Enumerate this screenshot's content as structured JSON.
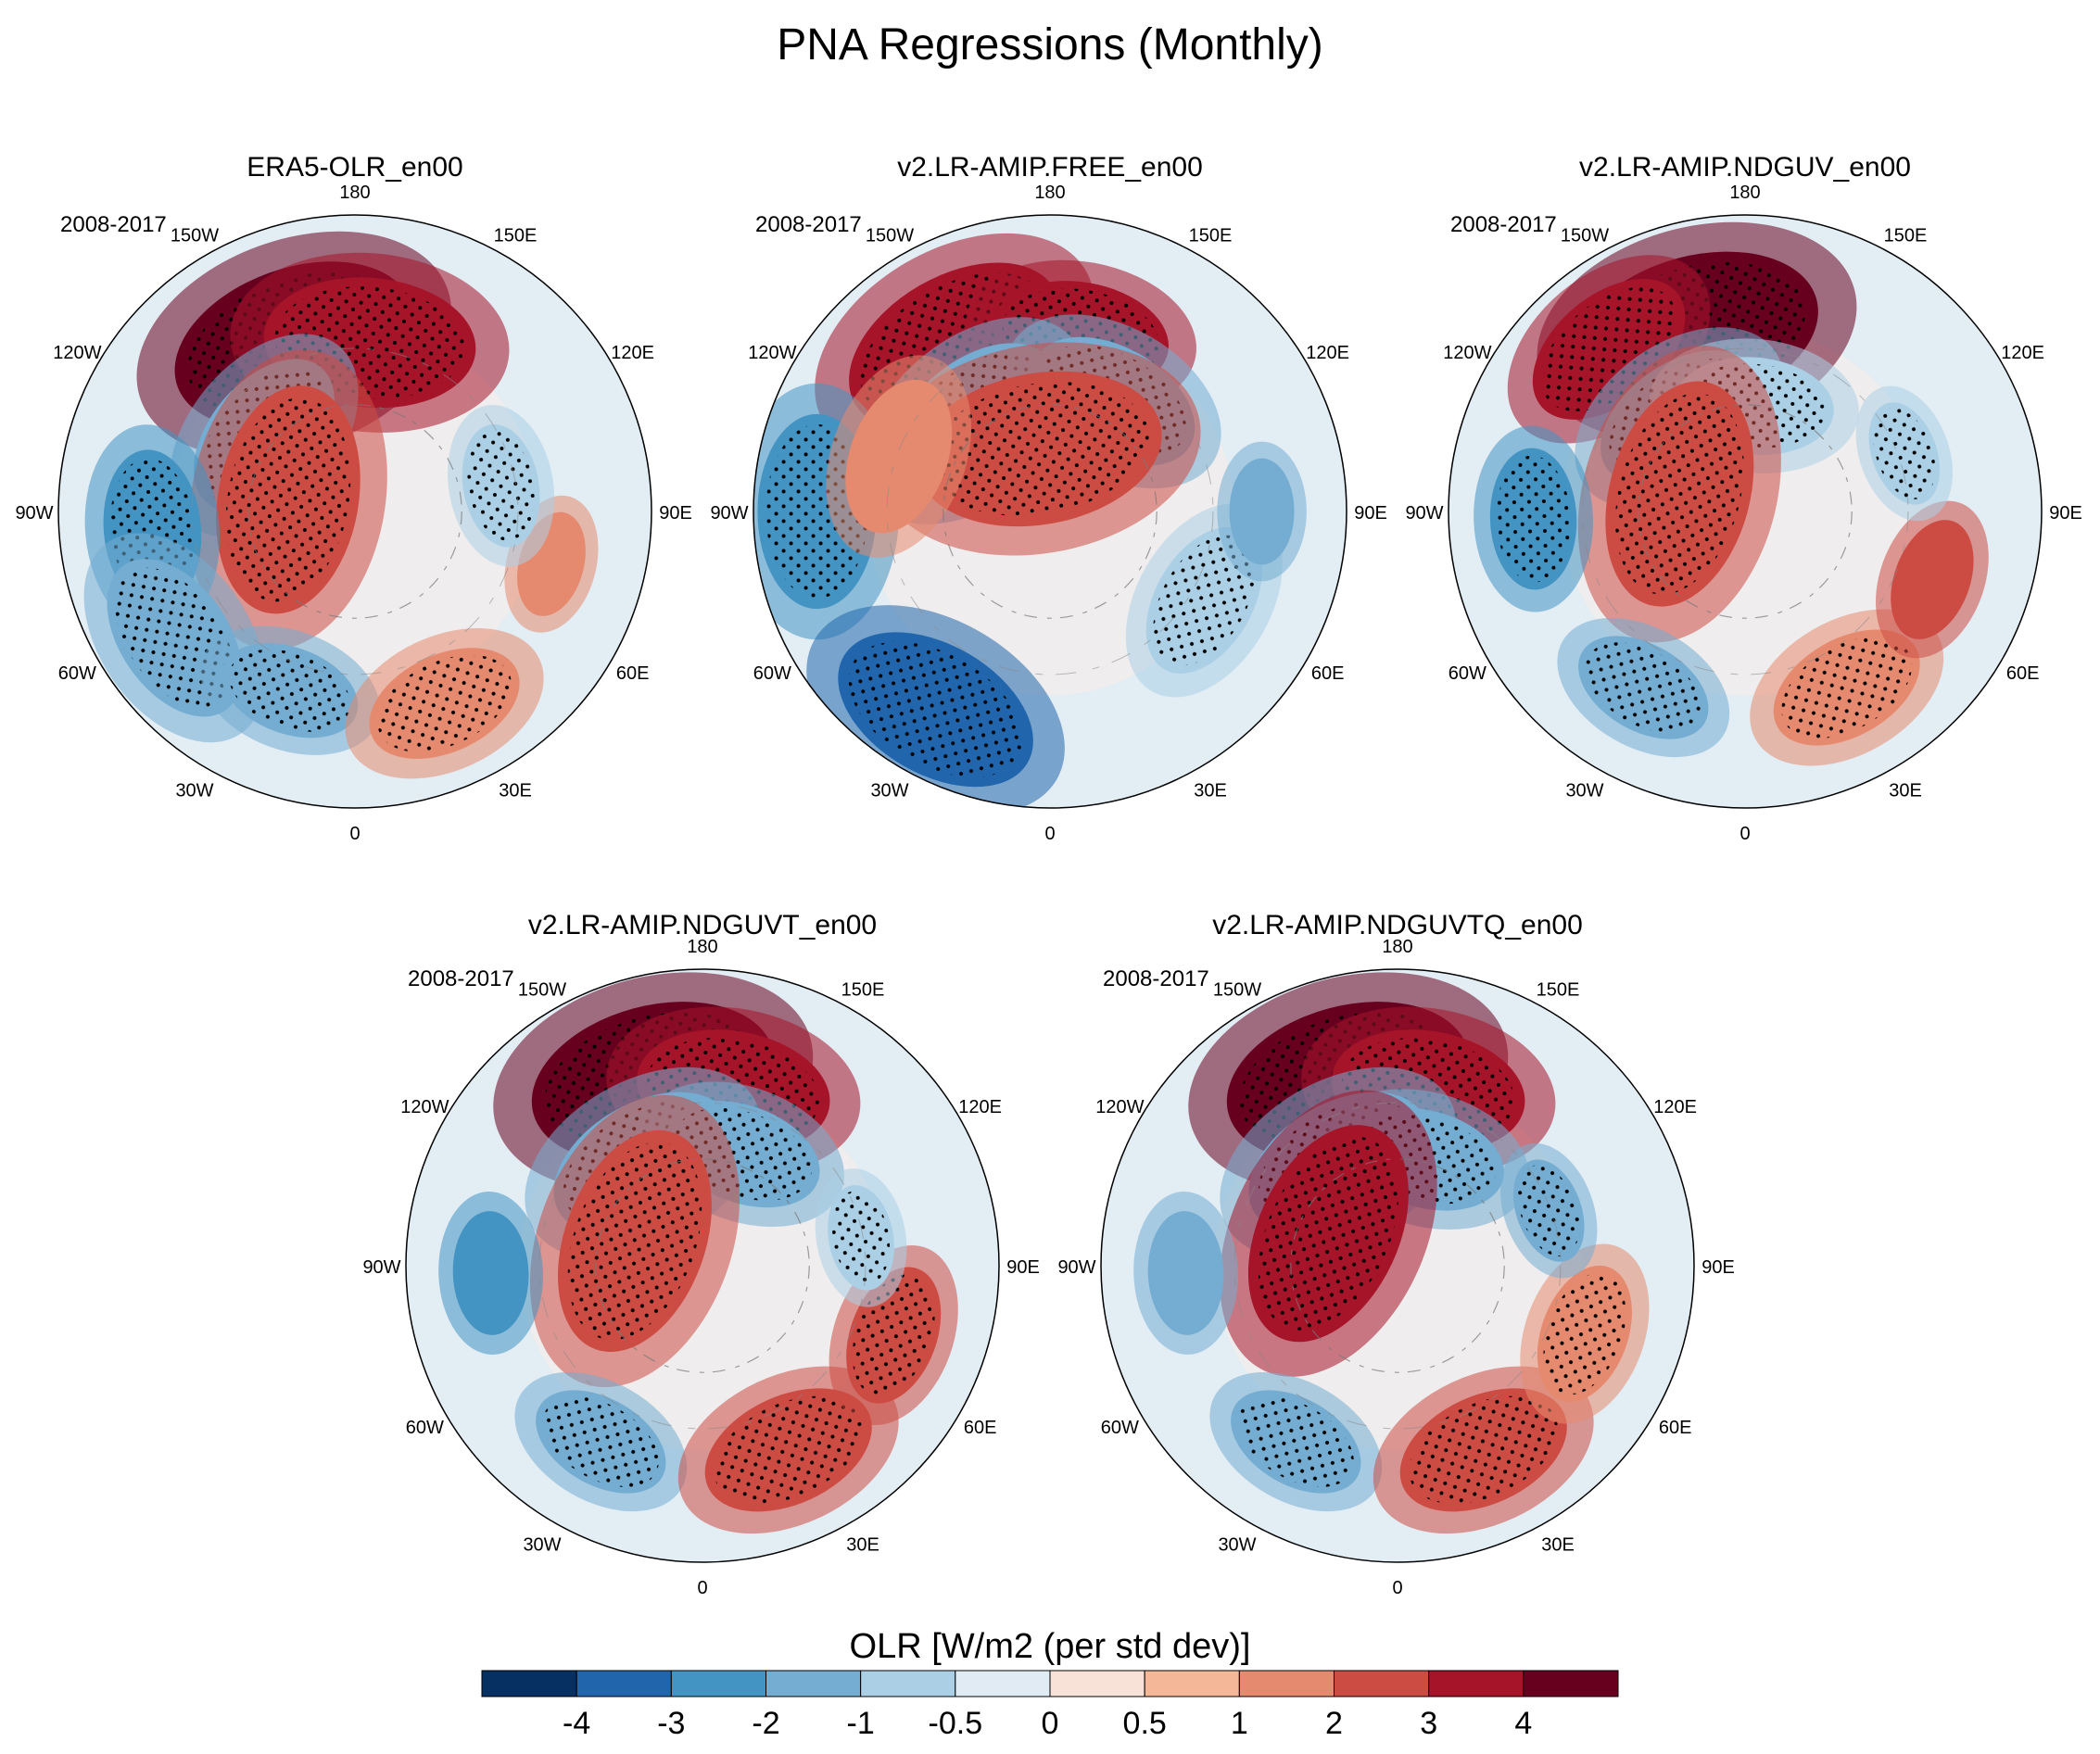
{
  "chart_data": {
    "type": "heatmap",
    "title": "PNA Regressions (Monthly)",
    "projection": "north-polar-stereographic",
    "period": "2008-2017",
    "longitude_labels": [
      "180",
      "150E",
      "120E",
      "90E",
      "60E",
      "30E",
      "0",
      "30W",
      "60W",
      "90W",
      "120W",
      "150W"
    ],
    "panels": [
      {
        "title": "ERA5-OLR_en00",
        "period_label": "2008-2017",
        "anomalies": [
          {
            "lon": -160,
            "lat": 48,
            "r": 14,
            "value": 4,
            "stipple": true
          },
          {
            "lon": 175,
            "lat": 50,
            "r": 12,
            "value": 3,
            "stipple": true
          },
          {
            "lon": -130,
            "lat": 62,
            "r": 10,
            "value": -2,
            "stipple": true
          },
          {
            "lon": -100,
            "lat": 74,
            "r": 13,
            "value": 2,
            "stipple": true
          },
          {
            "lon": -85,
            "lat": 42,
            "r": 9,
            "value": -3,
            "stipple": true
          },
          {
            "lon": -55,
            "lat": 38,
            "r": 10,
            "value": -2,
            "stipple": true
          },
          {
            "lon": -20,
            "lat": 45,
            "r": 8,
            "value": -2,
            "stipple": true
          },
          {
            "lon": 25,
            "lat": 40,
            "r": 9,
            "value": 1,
            "stipple": true
          },
          {
            "lon": 75,
            "lat": 42,
            "r": 6,
            "value": 1,
            "stipple": false
          },
          {
            "lon": 100,
            "lat": 55,
            "r": 7,
            "value": -1,
            "stipple": true
          }
        ]
      },
      {
        "title": "v2.LR-AMIP.FREE_en00",
        "period_label": "2008-2017",
        "anomalies": [
          {
            "lon": -150,
            "lat": 45,
            "r": 13,
            "value": 3,
            "stipple": true
          },
          {
            "lon": 170,
            "lat": 48,
            "r": 10,
            "value": 3,
            "stipple": true
          },
          {
            "lon": -140,
            "lat": 62,
            "r": 11,
            "value": -2,
            "stipple": true
          },
          {
            "lon": 150,
            "lat": 60,
            "r": 10,
            "value": -2,
            "stipple": true
          },
          {
            "lon": -170,
            "lat": 75,
            "r": 14,
            "value": 2,
            "stipple": true
          },
          {
            "lon": -90,
            "lat": 35,
            "r": 11,
            "value": -3,
            "stipple": true
          },
          {
            "lon": -30,
            "lat": 36,
            "r": 12,
            "value": -4,
            "stipple": true
          },
          {
            "lon": 60,
            "lat": 48,
            "r": 9,
            "value": -1,
            "stipple": true
          },
          {
            "lon": 90,
            "lat": 40,
            "r": 6,
            "value": -2,
            "stipple": false
          },
          {
            "lon": -110,
            "lat": 52,
            "r": 9,
            "value": 1,
            "stipple": false
          }
        ]
      },
      {
        "title": "v2.LR-AMIP.NDGUV_en00",
        "period_label": "2008-2017",
        "anomalies": [
          {
            "lon": -165,
            "lat": 46,
            "r": 14,
            "value": 4,
            "stipple": true
          },
          {
            "lon": -140,
            "lat": 40,
            "r": 10,
            "value": 3,
            "stipple": true
          },
          {
            "lon": -145,
            "lat": 63,
            "r": 10,
            "value": -2,
            "stipple": true
          },
          {
            "lon": 175,
            "lat": 65,
            "r": 9,
            "value": -1,
            "stipple": true
          },
          {
            "lon": -105,
            "lat": 74,
            "r": 13,
            "value": 2,
            "stipple": true
          },
          {
            "lon": -88,
            "lat": 40,
            "r": 8,
            "value": -3,
            "stipple": true
          },
          {
            "lon": -30,
            "lat": 42,
            "r": 8,
            "value": -2,
            "stipple": true
          },
          {
            "lon": 30,
            "lat": 42,
            "r": 9,
            "value": 1,
            "stipple": true
          },
          {
            "lon": 70,
            "lat": 43,
            "r": 7,
            "value": 2,
            "stipple": false
          },
          {
            "lon": 110,
            "lat": 50,
            "r": 6,
            "value": -1,
            "stipple": true
          }
        ]
      },
      {
        "title": "v2.LR-AMIP.NDGUVT_en00",
        "period_label": "2008-2017",
        "anomalies": [
          {
            "lon": -165,
            "lat": 45,
            "r": 14,
            "value": 4,
            "stipple": true
          },
          {
            "lon": 170,
            "lat": 48,
            "r": 11,
            "value": 3,
            "stipple": true
          },
          {
            "lon": -150,
            "lat": 62,
            "r": 11,
            "value": -2,
            "stipple": true
          },
          {
            "lon": 160,
            "lat": 62,
            "r": 9,
            "value": -2,
            "stipple": true
          },
          {
            "lon": -110,
            "lat": 73,
            "r": 13,
            "value": 2,
            "stipple": true
          },
          {
            "lon": -88,
            "lat": 40,
            "r": 7,
            "value": -3,
            "stipple": false
          },
          {
            "lon": -30,
            "lat": 42,
            "r": 8,
            "value": -2,
            "stipple": true
          },
          {
            "lon": 25,
            "lat": 42,
            "r": 10,
            "value": 2,
            "stipple": true
          },
          {
            "lon": 70,
            "lat": 42,
            "r": 8,
            "value": 2,
            "stipple": true
          },
          {
            "lon": 100,
            "lat": 52,
            "r": 6,
            "value": -1,
            "stipple": true
          }
        ]
      },
      {
        "title": "v2.LR-AMIP.NDGUVTQ_en00",
        "period_label": "2008-2017",
        "anomalies": [
          {
            "lon": -165,
            "lat": 45,
            "r": 14,
            "value": 4,
            "stipple": true
          },
          {
            "lon": 170,
            "lat": 48,
            "r": 11,
            "value": 3,
            "stipple": true
          },
          {
            "lon": -150,
            "lat": 62,
            "r": 11,
            "value": -2,
            "stipple": true
          },
          {
            "lon": 165,
            "lat": 64,
            "r": 9,
            "value": -2,
            "stipple": true
          },
          {
            "lon": -115,
            "lat": 72,
            "r": 13,
            "value": 3,
            "stipple": true
          },
          {
            "lon": -88,
            "lat": 40,
            "r": 7,
            "value": -2,
            "stipple": false
          },
          {
            "lon": -30,
            "lat": 42,
            "r": 8,
            "value": -2,
            "stipple": true
          },
          {
            "lon": 25,
            "lat": 42,
            "r": 10,
            "value": 2,
            "stipple": true
          },
          {
            "lon": 70,
            "lat": 43,
            "r": 8,
            "value": 1,
            "stipple": true
          },
          {
            "lon": 110,
            "lat": 52,
            "r": 6,
            "value": -2,
            "stipple": true
          }
        ]
      }
    ],
    "colorbar": {
      "label": "OLR [W/m2 (per std dev)]",
      "levels": [
        "-4",
        "-3",
        "-2",
        "-1",
        "-0.5",
        "0",
        "0.5",
        "1",
        "2",
        "3",
        "4"
      ],
      "colors": [
        "#053061",
        "#2166ac",
        "#4393c3",
        "#74add1",
        "#abd0e6",
        "#e0ebf3",
        "#f8e2d8",
        "#f4b898",
        "#e68a6f",
        "#cc4c44",
        "#a51429",
        "#67001f"
      ]
    }
  }
}
